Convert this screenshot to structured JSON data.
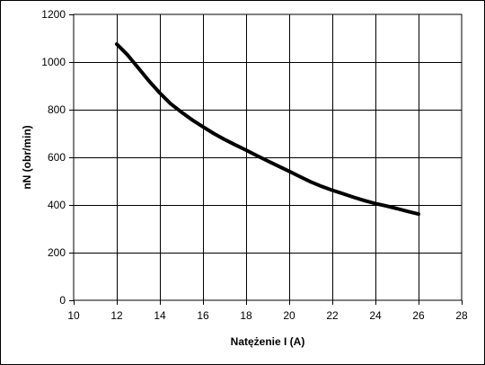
{
  "chart_data": {
    "type": "line",
    "title": "",
    "xlabel": "Natężenie I (A)",
    "ylabel": "nN (obr/min)",
    "xlim": [
      10,
      28
    ],
    "ylim": [
      0,
      1200
    ],
    "xticks": [
      10,
      12,
      14,
      16,
      18,
      20,
      22,
      24,
      26,
      28
    ],
    "yticks": [
      0,
      200,
      400,
      600,
      800,
      1000,
      1200
    ],
    "grid": true,
    "legend": "none",
    "series": [
      {
        "color": "#000000",
        "x": [
          12,
          12.5,
          13,
          13.5,
          14,
          14.5,
          15,
          15.5,
          16,
          16.5,
          17,
          17.5,
          18,
          18.5,
          19,
          19.5,
          20,
          20.5,
          21,
          21.5,
          22,
          22.5,
          23,
          23.5,
          24,
          24.5,
          25,
          25.5,
          26
        ],
        "y": [
          1075,
          1030,
          975,
          920,
          870,
          825,
          790,
          757,
          728,
          700,
          675,
          652,
          630,
          607,
          585,
          563,
          541,
          519,
          497,
          478,
          462,
          447,
          432,
          418,
          406,
          396,
          385,
          373,
          362
        ]
      }
    ]
  }
}
